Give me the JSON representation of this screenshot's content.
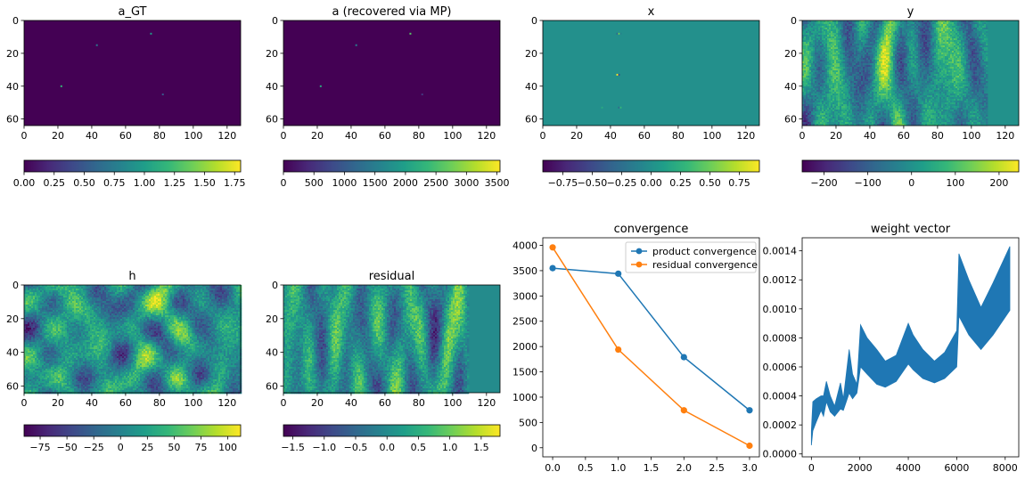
{
  "colors": {
    "viridis": [
      "#440154",
      "#482878",
      "#3e4989",
      "#31688e",
      "#26828e",
      "#1f9e89",
      "#35b779",
      "#6ece58",
      "#b5de2b",
      "#fde725"
    ],
    "product": "#1f77b4",
    "residual": "#ff7f0e"
  },
  "chart_data": [
    {
      "id": "a_gt",
      "type": "heatmap",
      "title": "a_GT",
      "xticks": [
        "0",
        "20",
        "40",
        "60",
        "80",
        "100",
        "120"
      ],
      "yticks": [
        "0",
        "20",
        "40",
        "60"
      ],
      "xlim": [
        0,
        128
      ],
      "ylim": [
        0,
        64
      ],
      "fill": "background-low",
      "spikes": [
        {
          "x": 43,
          "y": 15,
          "value": 0.7
        },
        {
          "x": 75,
          "y": 8,
          "value": 1.0
        },
        {
          "x": 22,
          "y": 40,
          "value": 1.2
        },
        {
          "x": 82,
          "y": 45,
          "value": 0.5
        }
      ],
      "colorbar": {
        "ticks": [
          "0.00",
          "0.25",
          "0.50",
          "0.75",
          "1.00",
          "1.25",
          "1.50",
          "1.75"
        ],
        "range": [
          0,
          1.8
        ]
      }
    },
    {
      "id": "a_mp",
      "type": "heatmap",
      "title": "a (recovered via MP)",
      "xticks": [
        "0",
        "20",
        "40",
        "60",
        "80",
        "100",
        "120"
      ],
      "yticks": [
        "0",
        "20",
        "40",
        "60"
      ],
      "xlim": [
        0,
        128
      ],
      "ylim": [
        0,
        64
      ],
      "fill": "background-low",
      "spikes": [
        {
          "x": 43,
          "y": 15,
          "value": 1500
        },
        {
          "x": 75,
          "y": 8,
          "value": 2600
        },
        {
          "x": 22,
          "y": 40,
          "value": 2200
        },
        {
          "x": 82,
          "y": 45,
          "value": 600
        }
      ],
      "colorbar": {
        "ticks": [
          "0",
          "500",
          "1000",
          "1500",
          "2000",
          "2500",
          "3000",
          "3500"
        ],
        "range": [
          0,
          3550
        ]
      }
    },
    {
      "id": "x",
      "type": "heatmap",
      "title": "x",
      "xticks": [
        "0",
        "20",
        "40",
        "60",
        "80",
        "100",
        "120"
      ],
      "yticks": [
        "0",
        "20",
        "40",
        "60"
      ],
      "xlim": [
        0,
        128
      ],
      "ylim": [
        0,
        64
      ],
      "fill": "background-mid",
      "spikes": [
        {
          "x": 44,
          "y": 8,
          "value": -0.3
        },
        {
          "x": 45,
          "y": 8,
          "value": 0.5
        },
        {
          "x": 46,
          "y": 8,
          "value": -0.1
        },
        {
          "x": 44,
          "y": 33,
          "value": 0.9
        },
        {
          "x": 45,
          "y": 33,
          "value": -0.5
        },
        {
          "x": 35,
          "y": 53,
          "value": 0.2
        },
        {
          "x": 45,
          "y": 53,
          "value": -0.3
        },
        {
          "x": 46,
          "y": 53,
          "value": 0.3
        }
      ],
      "colorbar": {
        "ticks": [
          "−0.75",
          "−0.50",
          "−0.25",
          "0.00",
          "0.25",
          "0.50",
          "0.75"
        ],
        "range": [
          -0.92,
          0.92
        ]
      }
    },
    {
      "id": "y",
      "type": "heatmap",
      "title": "y",
      "xticks": [
        "0",
        "20",
        "40",
        "60",
        "80",
        "100",
        "120"
      ],
      "yticks": [
        "0",
        "20",
        "40",
        "60"
      ],
      "xlim": [
        0,
        128
      ],
      "ylim": [
        0,
        64
      ],
      "fill": "noise-stripes",
      "noise_cols": [
        0,
        110
      ],
      "colorbar": {
        "ticks": [
          "−200",
          "−100",
          "0",
          "100",
          "200"
        ],
        "range": [
          -250,
          245
        ]
      }
    },
    {
      "id": "h",
      "type": "heatmap",
      "title": "h",
      "xticks": [
        "0",
        "20",
        "40",
        "60",
        "80",
        "100",
        "120"
      ],
      "yticks": [
        "0",
        "20",
        "40",
        "60"
      ],
      "xlim": [
        0,
        128
      ],
      "ylim": [
        0,
        64
      ],
      "fill": "noise-blobs",
      "colorbar": {
        "ticks": [
          "−75",
          "−50",
          "−25",
          "0",
          "25",
          "50",
          "75",
          "100"
        ],
        "range": [
          -90,
          112
        ]
      }
    },
    {
      "id": "residual",
      "type": "heatmap",
      "title": "residual",
      "xticks": [
        "0",
        "20",
        "40",
        "60",
        "80",
        "100",
        "120"
      ],
      "yticks": [
        "0",
        "20",
        "40",
        "60"
      ],
      "xlim": [
        0,
        128
      ],
      "ylim": [
        0,
        64
      ],
      "fill": "noise-stripes",
      "noise_cols": [
        0,
        110
      ],
      "colorbar": {
        "ticks": [
          "−1.5",
          "−1.0",
          "−0.5",
          "0.0",
          "0.5",
          "1.0",
          "1.5"
        ],
        "range": [
          -1.65,
          1.8
        ]
      }
    },
    {
      "id": "convergence",
      "type": "line",
      "title": "convergence",
      "x": [
        0,
        1,
        2,
        3
      ],
      "xlim": [
        -0.15,
        3.15
      ],
      "ylim": [
        -180,
        4150
      ],
      "xticks": [
        0,
        0.5,
        1,
        1.5,
        2,
        2.5,
        3
      ],
      "xtick_labels": [
        "0.0",
        "0.5",
        "1.0",
        "1.5",
        "2.0",
        "2.5",
        "3.0"
      ],
      "yticks": [
        0,
        500,
        1000,
        1500,
        2000,
        2500,
        3000,
        3500,
        4000
      ],
      "ytick_labels": [
        "0",
        "500",
        "1000",
        "1500",
        "2000",
        "2500",
        "3000",
        "3500",
        "4000"
      ],
      "legend": "upper right",
      "series": [
        {
          "name": "product convergence",
          "values": [
            3550,
            3440,
            1790,
            740
          ]
        },
        {
          "name": "residual convergence",
          "values": [
            3960,
            1940,
            740,
            40
          ]
        }
      ]
    },
    {
      "id": "weight",
      "type": "area",
      "title": "weight vector",
      "x_max": 8192,
      "xlim": [
        -380,
        8560
      ],
      "ylim": [
        -2e-05,
        0.00149
      ],
      "xticks": [
        0,
        2000,
        4000,
        6000,
        8000
      ],
      "xtick_labels": [
        "0",
        "2000",
        "4000",
        "6000",
        "8000"
      ],
      "yticks": [
        0,
        0.0002,
        0.0004,
        0.0006,
        0.0008,
        0.001,
        0.0012,
        0.0014
      ],
      "ytick_labels": [
        "0.0000",
        "0.0002",
        "0.0004",
        "0.0006",
        "0.0008",
        "0.0010",
        "0.0012",
        "0.0014"
      ],
      "envelope": [
        {
          "x": 0,
          "low": 6e-05,
          "high": 0.00016
        },
        {
          "x": 60,
          "low": 0.00016,
          "high": 0.00036
        },
        {
          "x": 200,
          "low": 0.00022,
          "high": 0.00038
        },
        {
          "x": 400,
          "low": 0.0003,
          "high": 0.0004
        },
        {
          "x": 500,
          "low": 0.00026,
          "high": 0.0004
        },
        {
          "x": 620,
          "low": 0.00036,
          "high": 0.0005
        },
        {
          "x": 780,
          "low": 0.00029,
          "high": 0.0004
        },
        {
          "x": 960,
          "low": 0.00026,
          "high": 0.00033
        },
        {
          "x": 1200,
          "low": 0.00031,
          "high": 0.00049
        },
        {
          "x": 1320,
          "low": 0.0003,
          "high": 0.00038
        },
        {
          "x": 1560,
          "low": 0.00042,
          "high": 0.00072
        },
        {
          "x": 1700,
          "low": 0.00038,
          "high": 0.00055
        },
        {
          "x": 1880,
          "low": 0.00042,
          "high": 0.00048
        },
        {
          "x": 2030,
          "low": 0.0006,
          "high": 0.00089
        },
        {
          "x": 2300,
          "low": 0.00055,
          "high": 0.0008
        },
        {
          "x": 2700,
          "low": 0.00048,
          "high": 0.00072
        },
        {
          "x": 3050,
          "low": 0.00046,
          "high": 0.00064
        },
        {
          "x": 3500,
          "low": 0.0005,
          "high": 0.00068
        },
        {
          "x": 4000,
          "low": 0.00062,
          "high": 0.0009
        },
        {
          "x": 4200,
          "low": 0.00058,
          "high": 0.00082
        },
        {
          "x": 4600,
          "low": 0.00052,
          "high": 0.00072
        },
        {
          "x": 5080,
          "low": 0.00049,
          "high": 0.00064
        },
        {
          "x": 5500,
          "low": 0.00052,
          "high": 0.0007
        },
        {
          "x": 6000,
          "low": 0.0006,
          "high": 0.00085
        },
        {
          "x": 6090,
          "low": 0.00095,
          "high": 0.00138
        },
        {
          "x": 6500,
          "low": 0.00082,
          "high": 0.0012
        },
        {
          "x": 7000,
          "low": 0.00072,
          "high": 0.00101
        },
        {
          "x": 7500,
          "low": 0.00082,
          "high": 0.00118
        },
        {
          "x": 8192,
          "low": 0.00099,
          "high": 0.00143
        }
      ]
    }
  ]
}
